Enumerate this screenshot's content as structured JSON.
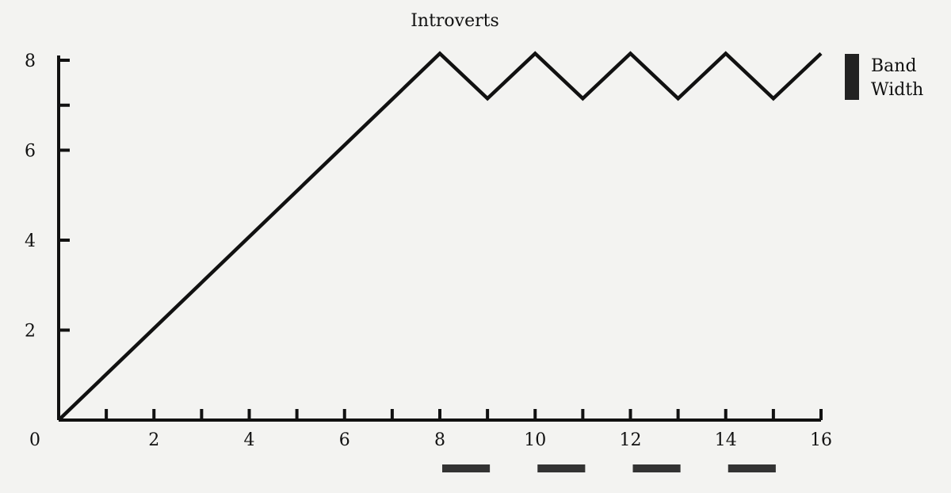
{
  "chart_data": {
    "type": "line",
    "title": "Introverts",
    "xlabel": "",
    "ylabel": "",
    "xlim": [
      0,
      16
    ],
    "ylim": [
      0,
      8
    ],
    "x_ticks_major": [
      0,
      2,
      4,
      6,
      8,
      10,
      12,
      14,
      16
    ],
    "x_ticks_minor": [
      1,
      3,
      5,
      7,
      9,
      11,
      13,
      15
    ],
    "y_ticks_major": [
      2,
      4,
      6,
      8
    ],
    "y_ticks_minor": [
      7
    ],
    "series": [
      {
        "x": [
          0,
          8,
          9,
          10,
          11,
          12,
          13,
          14,
          15,
          16
        ],
        "y": [
          0,
          8.15,
          7.15,
          8.15,
          7.15,
          8.15,
          7.15,
          8.15,
          7.15,
          8.15
        ]
      }
    ],
    "band_segments": [
      [
        8.05,
        9.05
      ],
      [
        10.05,
        11.05
      ],
      [
        12.05,
        13.05
      ],
      [
        14.05,
        15.05
      ]
    ],
    "legend": {
      "label_line1": "Band",
      "label_line2": "Width",
      "position": "top-right"
    },
    "grid": false
  }
}
